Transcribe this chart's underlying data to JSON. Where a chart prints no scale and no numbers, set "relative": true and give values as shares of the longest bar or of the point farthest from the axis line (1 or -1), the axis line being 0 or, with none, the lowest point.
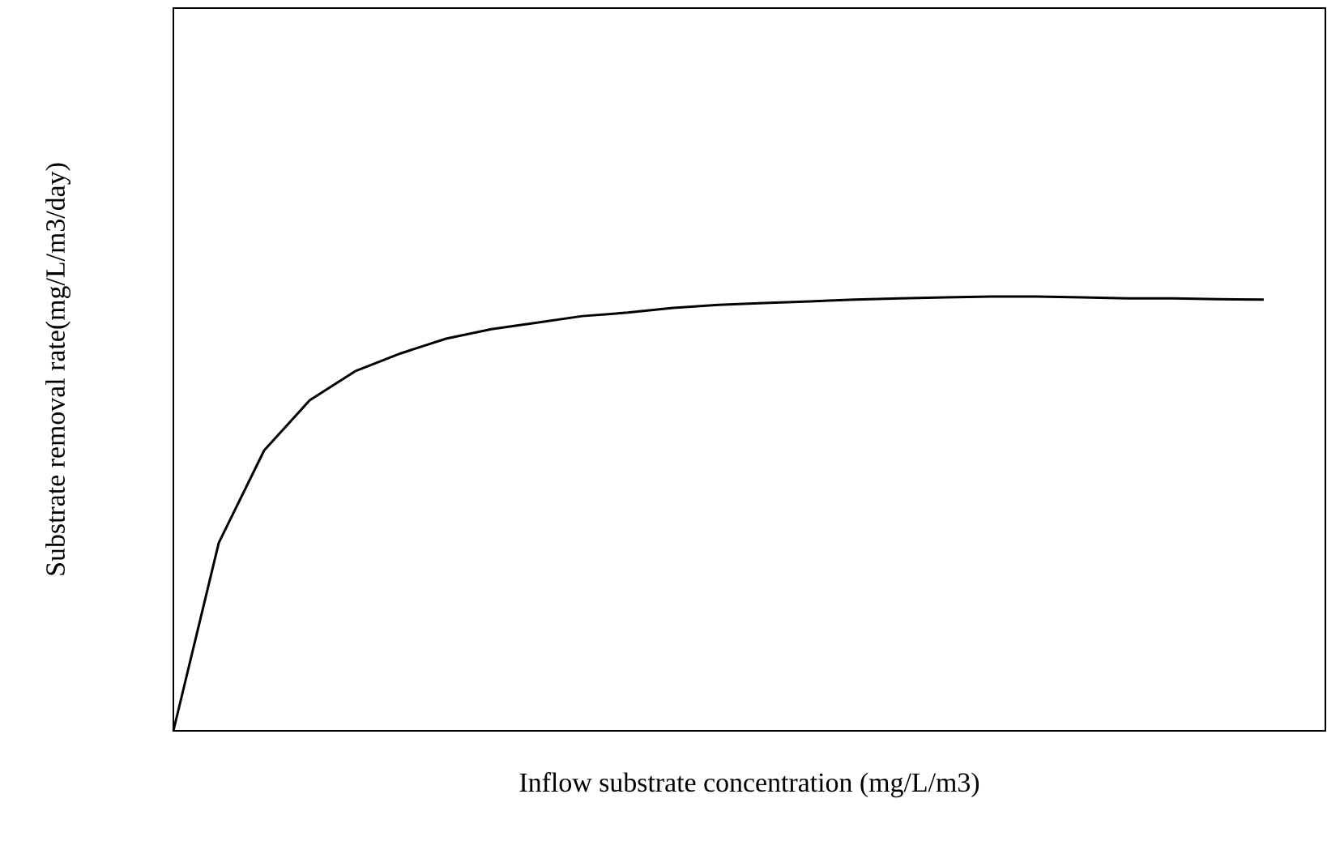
{
  "chart_data": {
    "type": "line",
    "relative": true,
    "xlabel": "Inflow substrate concentration (mg/L/m3)",
    "ylabel": "Substrate removal rate(mg/L/m3/day)",
    "categories": [
      null,
      null,
      null,
      null,
      null,
      null,
      null,
      null,
      null,
      null,
      null,
      null,
      null,
      null,
      null,
      null,
      null,
      null,
      null,
      null,
      null,
      null,
      null,
      null,
      null
    ],
    "series": [
      {
        "color": "#000000",
        "values": [
          0,
          0.433,
          0.646,
          0.761,
          0.828,
          0.869,
          0.903,
          0.925,
          0.94,
          0.955,
          0.963,
          0.974,
          0.981,
          0.985,
          0.989,
          0.993,
          0.996,
          0.998,
          1,
          1,
          0.998,
          0.996,
          0.996,
          0.994,
          0.993
        ]
      }
    ]
  }
}
